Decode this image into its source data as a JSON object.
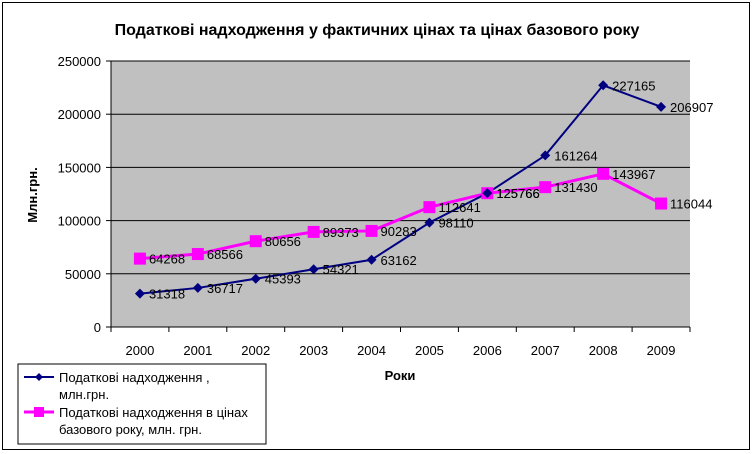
{
  "chart_data": {
    "type": "line",
    "title": "Податкові надходження у фактичних цінах та цінах базового року",
    "xlabel": "Роки",
    "ylabel": "Млн.грн.",
    "ylim": [
      0,
      250000
    ],
    "yticks": [
      0,
      50000,
      100000,
      150000,
      200000,
      250000
    ],
    "grid": true,
    "categories": [
      "2000",
      "2001",
      "2002",
      "2003",
      "2004",
      "2005",
      "2006",
      "2007",
      "2008",
      "2009"
    ],
    "legend_position": "bottom-left",
    "series": [
      {
        "name": "Податкові надходження , млн.грн.",
        "name_lines": [
          "Податкові надходження ,",
          "млн.грн."
        ],
        "marker": "diamond",
        "color": "#000080",
        "values": [
          31318,
          36717,
          45393,
          54321,
          63162,
          98110,
          125766,
          161264,
          227165,
          206907
        ]
      },
      {
        "name": "Податкові надходження в цінах базового року, млн. грн.",
        "name_lines": [
          "Податкові надходження в цінах",
          "базового року, млн. грн."
        ],
        "marker": "square",
        "color": "#FF00FF",
        "values": [
          64268,
          68566,
          80656,
          89373,
          90283,
          112641,
          125766,
          131430,
          143967,
          116044
        ]
      }
    ]
  },
  "colors": {
    "plot_background": "#C0C0C0",
    "gridline": "#000000"
  }
}
